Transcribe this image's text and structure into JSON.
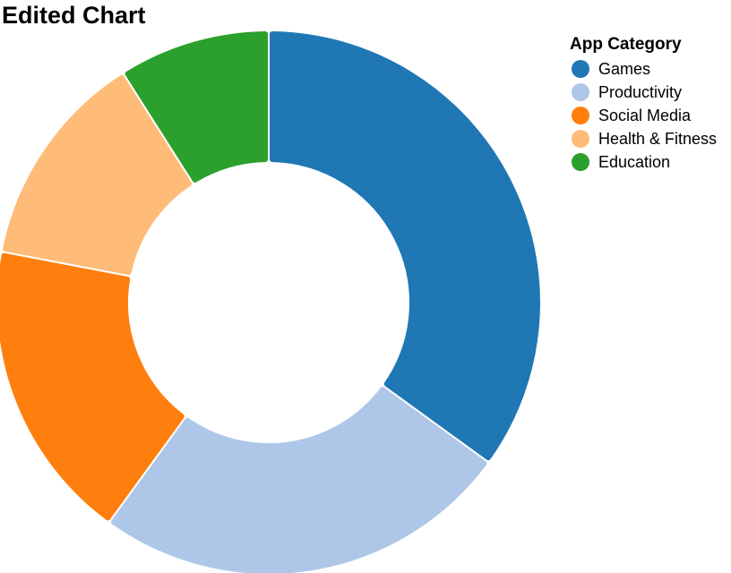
{
  "title": "Edited Chart",
  "chart_data": {
    "type": "pie",
    "title": "Edited Chart",
    "legend_title": "App Category",
    "legend_position": "top-right",
    "donut": true,
    "categories": [
      "Games",
      "Productivity",
      "Social Media",
      "Health & Fitness",
      "Education"
    ],
    "values": [
      35,
      25,
      18,
      13,
      9
    ],
    "colors": [
      "#1f77b4",
      "#aec7e8",
      "#ff7f0e",
      "#ffbb78",
      "#2ca02c"
    ]
  }
}
